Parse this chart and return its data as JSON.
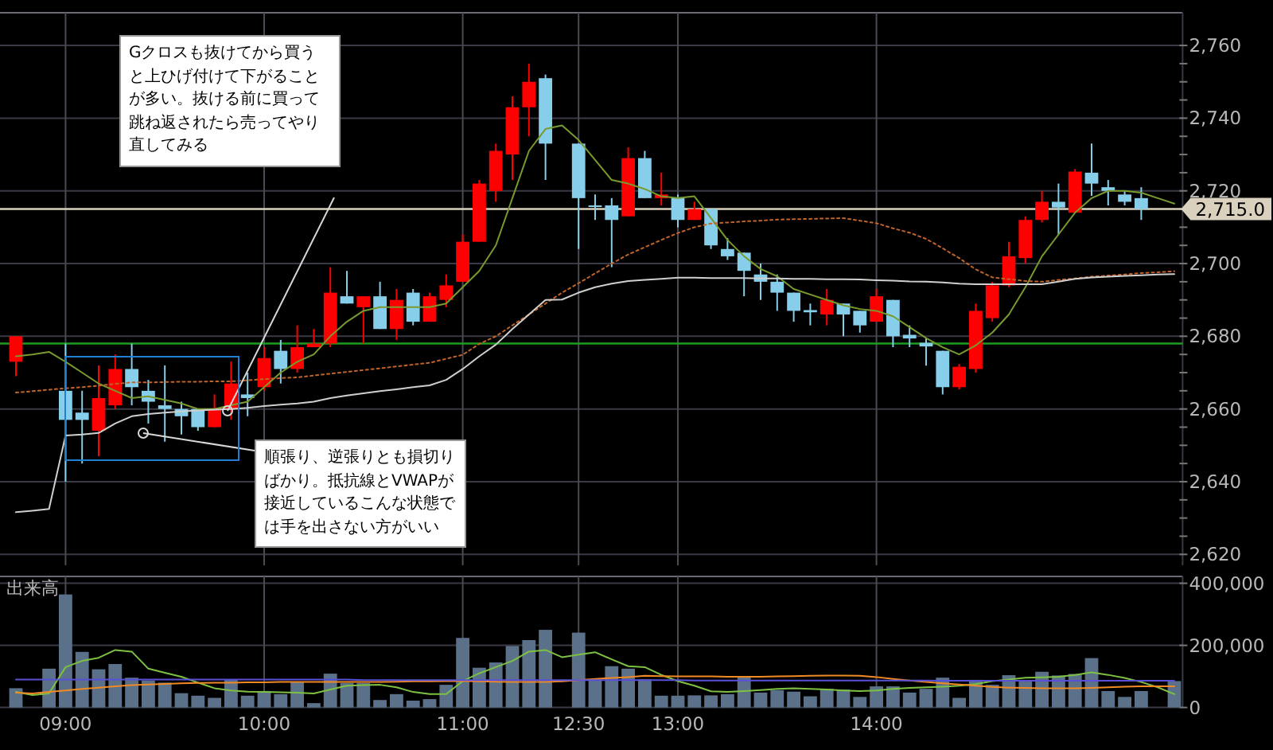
{
  "chart_data": [
    {
      "type": "candlestick",
      "categories": [
        null,
        null,
        null,
        null,
        null,
        null,
        null,
        null,
        null,
        null,
        null,
        null,
        null,
        null,
        null,
        null,
        null,
        null,
        null,
        null,
        null,
        null,
        null,
        null,
        null,
        null,
        null,
        null,
        null,
        null,
        null,
        null,
        null,
        null,
        null,
        null,
        null,
        null,
        null,
        null,
        null,
        null,
        null,
        null,
        null,
        null,
        null,
        null,
        null,
        null,
        null,
        null,
        null,
        null,
        null,
        null,
        null,
        null,
        null,
        null,
        null,
        null,
        null,
        null,
        null,
        null,
        null,
        null,
        null,
        null,
        null
      ],
      "ohlc": [
        [
          2673,
          2680,
          2669,
          2680
        ],
        null,
        null,
        [
          2665,
          2678,
          2640,
          2657
        ],
        [
          2659,
          2665,
          2645,
          2657
        ],
        [
          2654,
          2672,
          2647,
          2663
        ],
        [
          2661,
          2675,
          2660,
          2671
        ],
        [
          2671,
          2678,
          2661,
          2666
        ],
        [
          2665,
          2668,
          2656,
          2662
        ],
        [
          2661,
          2672,
          2651,
          2660
        ],
        [
          2660,
          2662,
          2653,
          2658
        ],
        [
          2660,
          2660,
          2654,
          2655
        ],
        [
          2655,
          2664,
          2655,
          2660
        ],
        [
          2660,
          2673,
          2657,
          2667
        ],
        [
          2664,
          2670,
          2658,
          2663
        ],
        [
          2666,
          2677,
          2665,
          2674
        ],
        [
          2676,
          2679,
          2667,
          2671
        ],
        [
          2671,
          2683,
          2670,
          2677
        ],
        [
          2677,
          2682,
          2677,
          2678
        ],
        [
          2678,
          2699,
          2677,
          2692
        ],
        [
          2691,
          2698,
          2689,
          2689
        ],
        [
          2688,
          2691,
          2678,
          2691
        ],
        [
          2691,
          2695,
          2682,
          2682
        ],
        [
          2682,
          2693,
          2679,
          2690
        ],
        [
          2692,
          2693,
          2683,
          2684
        ],
        [
          2684,
          2692,
          2684,
          2691
        ],
        [
          2690,
          2697,
          2688,
          2694
        ],
        [
          2695,
          2708,
          2695,
          2706
        ],
        [
          2706,
          2723,
          2706,
          2722
        ],
        [
          2720,
          2733,
          2717,
          2731
        ],
        [
          2730,
          2746,
          2723,
          2743
        ],
        [
          2743,
          2755,
          2735,
          2750
        ],
        [
          2751,
          2752,
          2723,
          2733
        ],
        null,
        [
          2733,
          2733,
          2704,
          2718
        ],
        [
          2716,
          2719,
          2712,
          2716
        ],
        [
          2716,
          2718,
          2699,
          2712
        ],
        [
          2713,
          2732,
          2713,
          2729
        ],
        [
          2729,
          2731,
          2718,
          2718
        ],
        [
          2718,
          2725,
          2716,
          2719
        ],
        [
          2718,
          2719,
          2710,
          2712
        ],
        [
          2712,
          2717,
          2712,
          2715
        ],
        [
          2715,
          2715,
          2704,
          2705
        ],
        [
          2704,
          2707,
          2701,
          2702
        ],
        [
          2703,
          2703,
          2691,
          2698
        ],
        [
          2697,
          2700,
          2690,
          2695
        ],
        [
          2695,
          2697,
          2687,
          2692
        ],
        [
          2692,
          2692,
          2684,
          2687
        ],
        [
          2687.2,
          2689,
          2683,
          2686.6
        ],
        [
          2686,
          2693,
          2683,
          2690
        ],
        [
          2689,
          2689,
          2680,
          2686
        ],
        [
          2687,
          2687,
          2681,
          2683
        ],
        [
          2684,
          2693,
          2684,
          2691
        ],
        [
          2690,
          2690,
          2677,
          2680
        ],
        [
          2680.4,
          2683,
          2677,
          2679.4
        ],
        [
          2678.2,
          2679.6,
          2671.9,
          2677.2
        ],
        [
          2676,
          2676,
          2664,
          2666
        ],
        [
          2666,
          2672.4,
          2665.4,
          2671.6
        ],
        [
          2671,
          2689,
          2670,
          2687
        ],
        [
          2685,
          2695,
          2684,
          2694
        ],
        [
          2694,
          2706,
          2693.5,
          2702
        ],
        [
          2701.5,
          2713,
          2700,
          2712
        ],
        [
          2712,
          2720,
          2711.3,
          2717
        ],
        [
          2717,
          2722,
          2708,
          2715.4
        ],
        [
          2714,
          2726,
          2714,
          2725.3
        ],
        [
          2725,
          2733,
          2718.6,
          2722
        ],
        [
          2721,
          2723,
          2716,
          2720
        ],
        [
          2719,
          2720,
          2716,
          2717
        ],
        [
          2718,
          2721,
          2712,
          2715
        ],
        null,
        null
      ],
      "colors": [
        "#ff0000",
        null,
        null,
        "#87ceeb",
        "#87ceeb",
        "#ff0000",
        "#ff0000",
        "#87ceeb",
        "#87ceeb",
        "#87ceeb",
        "#87ceeb",
        "#87ceeb",
        "#ff0000",
        "#ff0000",
        "#87ceeb",
        "#ff0000",
        "#87ceeb",
        "#ff0000",
        "#ff0000",
        "#ff0000",
        "#87ceeb",
        "#ff0000",
        "#87ceeb",
        "#ff0000",
        "#87ceeb",
        "#ff0000",
        "#ff0000",
        "#ff0000",
        "#ff0000",
        "#ff0000",
        "#ff0000",
        "#ff0000",
        "#87ceeb",
        null,
        "#87ceeb",
        "#87ceeb",
        "#87ceeb",
        "#ff0000",
        "#87ceeb",
        "#ff0000",
        "#87ceeb",
        "#ff0000",
        "#87ceeb",
        "#87ceeb",
        "#87ceeb",
        "#87ceeb",
        "#87ceeb",
        "#87ceeb",
        "#87ceeb",
        "#ff0000",
        "#87ceeb",
        "#87ceeb",
        "#ff0000",
        "#87ceeb",
        "#87ceeb",
        "#87ceeb",
        "#87ceeb",
        "#ff0000",
        "#ff0000",
        "#ff0000",
        "#ff0000",
        "#ff0000",
        "#ff0000",
        "#87ceeb",
        "#ff0000",
        "#87ceeb",
        "#87ceeb",
        "#87ceeb",
        "#87ceeb",
        null,
        null
      ],
      "series": [
        {
          "type": "line",
          "color": "#7a9a2e",
          "line_style": "solid",
          "values": [
            2674.5,
            2675,
            2675.7,
            2673,
            2670,
            2667,
            2665,
            2663,
            2663.5,
            2662.5,
            2661.5,
            2660,
            2660,
            2661,
            2662,
            2666,
            2670,
            2673,
            2675,
            2680,
            2684,
            2687,
            2688,
            2688,
            2688,
            2688,
            2689,
            2693.5,
            2698,
            2705,
            2718,
            2731,
            2737,
            2738,
            2734,
            2728.5,
            2723,
            2722,
            2720.5,
            2718.5,
            2718,
            2718.5,
            2712.5,
            2706.5,
            2702,
            2698.5,
            2696.5,
            2693,
            2691.5,
            2690,
            2688.5,
            2687.5,
            2687,
            2685.5,
            2682.5,
            2679.5,
            2677,
            2675,
            2677.5,
            2681,
            2686,
            2693.5,
            2702,
            2708,
            2714,
            2718,
            2720,
            2720,
            2719.5,
            2718,
            2716.5
          ]
        },
        {
          "type": "line",
          "color": "#c0642a",
          "line_style": "dotted",
          "values": [
            2664.5,
            2664.9,
            2665.3,
            2665.7,
            2666,
            2666.4,
            2666.9,
            2667.3,
            2667.3,
            2667.4,
            2667.5,
            2667.5,
            2667.6,
            2667.6,
            2667.9,
            2668.2,
            2668.5,
            2668.7,
            2669.2,
            2669.7,
            2670.2,
            2670.7,
            2671.2,
            2671.7,
            2672.2,
            2672.7,
            2673.8,
            2674.9,
            2677.9,
            2680,
            2683,
            2686,
            2689,
            2692,
            2694.6,
            2697.3,
            2700,
            2702.5,
            2704.5,
            2706.5,
            2708.4,
            2710,
            2711,
            2711.3,
            2711.6,
            2711.8,
            2712.1,
            2712.2,
            2712.3,
            2712.4,
            2712.5,
            2711.8,
            2711.1,
            2709.7,
            2708.5,
            2706.8,
            2704.2,
            2701.5,
            2698.4,
            2696.2,
            2695.7,
            2695.2,
            2695,
            2695.5,
            2695.9,
            2696.4,
            2696.7,
            2697,
            2697.4,
            2697.6,
            2697.9
          ]
        },
        {
          "type": "line",
          "color": "#cfcfcf",
          "line_style": "solid",
          "values": [
            2631.6,
            2632,
            2632.5,
            2652.7,
            2653,
            2653.4,
            2656,
            2658,
            2658.6,
            2659,
            2659.3,
            2659.6,
            2659.8,
            2660,
            2660.3,
            2660.8,
            2661.2,
            2661.5,
            2662,
            2663,
            2663.7,
            2664.3,
            2664.9,
            2665.4,
            2666,
            2666.5,
            2668,
            2671,
            2674.5,
            2677.7,
            2682,
            2686,
            2690,
            2690.1,
            2692,
            2693.5,
            2694.5,
            2695.2,
            2695.5,
            2695.8,
            2696.1,
            2696.1,
            2696,
            2696,
            2696,
            2695.9,
            2695.9,
            2695.8,
            2695.8,
            2695.7,
            2695.7,
            2695.6,
            2695.4,
            2695.3,
            2695.1,
            2695,
            2694.8,
            2694.5,
            2694.3,
            2694.3,
            2694.3,
            2694.3,
            2694.3,
            2695,
            2695.8,
            2696.2,
            2696.4,
            2696.6,
            2696.8,
            2697,
            2697.1
          ]
        }
      ],
      "ylim": [
        2617,
        2769
      ],
      "yticks": [
        {
          "value": 2620,
          "label": "2,620"
        },
        {
          "value": 2625,
          "label": null
        },
        {
          "value": 2630,
          "label": null
        },
        {
          "value": 2635,
          "label": null
        },
        {
          "value": 2640,
          "label": "2,640"
        },
        {
          "value": 2645,
          "label": null
        },
        {
          "value": 2650,
          "label": null
        },
        {
          "value": 2655,
          "label": null
        },
        {
          "value": 2660,
          "label": "2,660"
        },
        {
          "value": 2665,
          "label": null
        },
        {
          "value": 2670,
          "label": null
        },
        {
          "value": 2675,
          "label": null
        },
        {
          "value": 2680,
          "label": "2,680"
        },
        {
          "value": 2685,
          "label": null
        },
        {
          "value": 2690,
          "label": null
        },
        {
          "value": 2695,
          "label": null
        },
        {
          "value": 2700,
          "label": "2,700"
        },
        {
          "value": 2705,
          "label": null
        },
        {
          "value": 2710,
          "label": null
        },
        {
          "value": 2715,
          "label": null
        },
        {
          "value": 2720,
          "label": "2,720"
        },
        {
          "value": 2725,
          "label": null
        },
        {
          "value": 2730,
          "label": null
        },
        {
          "value": 2735,
          "label": null
        },
        {
          "value": 2740,
          "label": "2,740"
        },
        {
          "value": 2745,
          "label": null
        },
        {
          "value": 2750,
          "label": null
        },
        {
          "value": 2755,
          "label": null
        },
        {
          "value": 2760,
          "label": "2,760"
        }
      ],
      "grid": true,
      "tick_labels": "y",
      "ref_lines": [
        {
          "axis": "y",
          "value": 2715,
          "label": "2,715.0",
          "color": "#d9d0bd"
        },
        {
          "axis": "y",
          "value": 2678,
          "color": "#1e9e1e"
        }
      ],
      "annotations": [
        "Gクロスも抜けてから買うと上ひげ付けて下がることが多い。抜ける前に買って跳ね返されたら売ってやり直してみる",
        "順張り、逆張りとも損切りばかり。抵抗線とVWAPが接近しているこんな状態では手を出さない方がいい"
      ]
    },
    {
      "type": "bar",
      "categories": [
        null,
        null,
        null,
        "09:00",
        null,
        null,
        null,
        null,
        null,
        null,
        null,
        null,
        null,
        null,
        null,
        "10:00",
        null,
        null,
        null,
        null,
        null,
        null,
        null,
        null,
        null,
        null,
        null,
        "11:00",
        null,
        null,
        null,
        null,
        null,
        null,
        "12:30",
        null,
        null,
        null,
        null,
        null,
        "13:00",
        null,
        null,
        null,
        null,
        null,
        null,
        null,
        null,
        null,
        null,
        null,
        "14:00",
        null,
        null,
        null,
        null,
        null,
        null,
        null,
        null,
        null,
        null,
        null,
        null,
        null,
        null,
        null,
        null,
        null,
        null
      ],
      "ylabel": "出来高",
      "series": [
        {
          "type": "bar",
          "color": "#5b7189",
          "values": [
            62000,
            null,
            125000,
            364000,
            179000,
            123000,
            140000,
            96000,
            87000,
            80000,
            46000,
            38000,
            31000,
            89000,
            38000,
            53000,
            43000,
            82000,
            14000,
            109000,
            79000,
            79000,
            24000,
            43000,
            22000,
            27000,
            73000,
            224000,
            128000,
            145000,
            198000,
            217000,
            250000,
            null,
            241000,
            91000,
            133000,
            125000,
            91000,
            38000,
            38000,
            39000,
            39000,
            43000,
            99000,
            48000,
            56000,
            51000,
            36000,
            60000,
            58000,
            34000,
            68000,
            68000,
            48000,
            60000,
            96000,
            31000,
            89000,
            73000,
            104000,
            85000,
            115000,
            103000,
            108000,
            159000,
            53000,
            34000,
            53000,
            null,
            85000
          ]
        },
        {
          "type": "line",
          "color": "#7cc142",
          "line_style": "solid",
          "values": [
            50000,
            40000,
            45000,
            130000,
            150000,
            160000,
            185000,
            180000,
            125000,
            112000,
            99000,
            80000,
            62000,
            55000,
            51000,
            50000,
            49000,
            48000,
            45000,
            58000,
            70000,
            72000,
            73000,
            65000,
            50000,
            43000,
            43000,
            85000,
            110000,
            130000,
            150000,
            180000,
            185000,
            162000,
            170000,
            178000,
            155000,
            133000,
            130000,
            105000,
            85000,
            70000,
            52000,
            50000,
            53000,
            56000,
            60000,
            62000,
            60000,
            58000,
            55000,
            53000,
            55000,
            60000,
            63000,
            65000,
            67000,
            70000,
            75000,
            85000,
            90000,
            96000,
            97000,
            99000,
            105000,
            113000,
            105000,
            95000,
            82000,
            65000,
            43000
          ]
        },
        {
          "type": "line",
          "color": "#f08a24",
          "line_style": "solid",
          "values": [
            48000,
            45000,
            50000,
            55000,
            60000,
            64000,
            68000,
            72000,
            74000,
            76000,
            78000,
            79000,
            80000,
            80000,
            81000,
            81000,
            82000,
            82000,
            82000,
            82000,
            82000,
            82000,
            82000,
            83000,
            84000,
            84000,
            85000,
            85000,
            84000,
            83000,
            82000,
            82000,
            82000,
            84000,
            88000,
            92000,
            95000,
            98000,
            102000,
            101000,
            100000,
            100000,
            100000,
            99000,
            99000,
            99000,
            100000,
            101000,
            102000,
            103000,
            103000,
            102000,
            98000,
            92000,
            87000,
            82000,
            78000,
            74000,
            70000,
            66000,
            64000,
            63000,
            62000,
            62000,
            62000,
            63000,
            65000,
            67000,
            68000,
            68000,
            68000
          ]
        },
        {
          "type": "line",
          "color": "#5a50d8",
          "line_style": "solid",
          "values": [
            90000,
            90000,
            90000,
            90000,
            90000,
            90000,
            90000,
            90000,
            90000,
            90000,
            90000,
            90000,
            90000,
            90000,
            90000,
            90000,
            90000,
            90000,
            90000,
            90000,
            90000,
            88000,
            88000,
            88000,
            88000,
            88000,
            88000,
            88000,
            88000,
            88000,
            88000,
            88000,
            88000,
            88000,
            88000,
            88000,
            88000,
            88000,
            88000,
            88000,
            88000,
            87000,
            87000,
            87000,
            87000,
            87000,
            87000,
            87000,
            87000,
            87000,
            87000,
            87000,
            87000,
            87000,
            87000,
            87000,
            86000,
            86000,
            86000,
            86000,
            86000,
            86000,
            86000,
            86000,
            86000,
            86000,
            86000,
            86000,
            86000,
            86000,
            86000
          ]
        }
      ],
      "ylim": [
        0,
        422000
      ],
      "yticks": [
        {
          "value": 0,
          "label": "0"
        },
        {
          "value": 200000,
          "label": "200,000"
        },
        {
          "value": 400000,
          "label": "400,000"
        }
      ],
      "grid": true
    }
  ]
}
